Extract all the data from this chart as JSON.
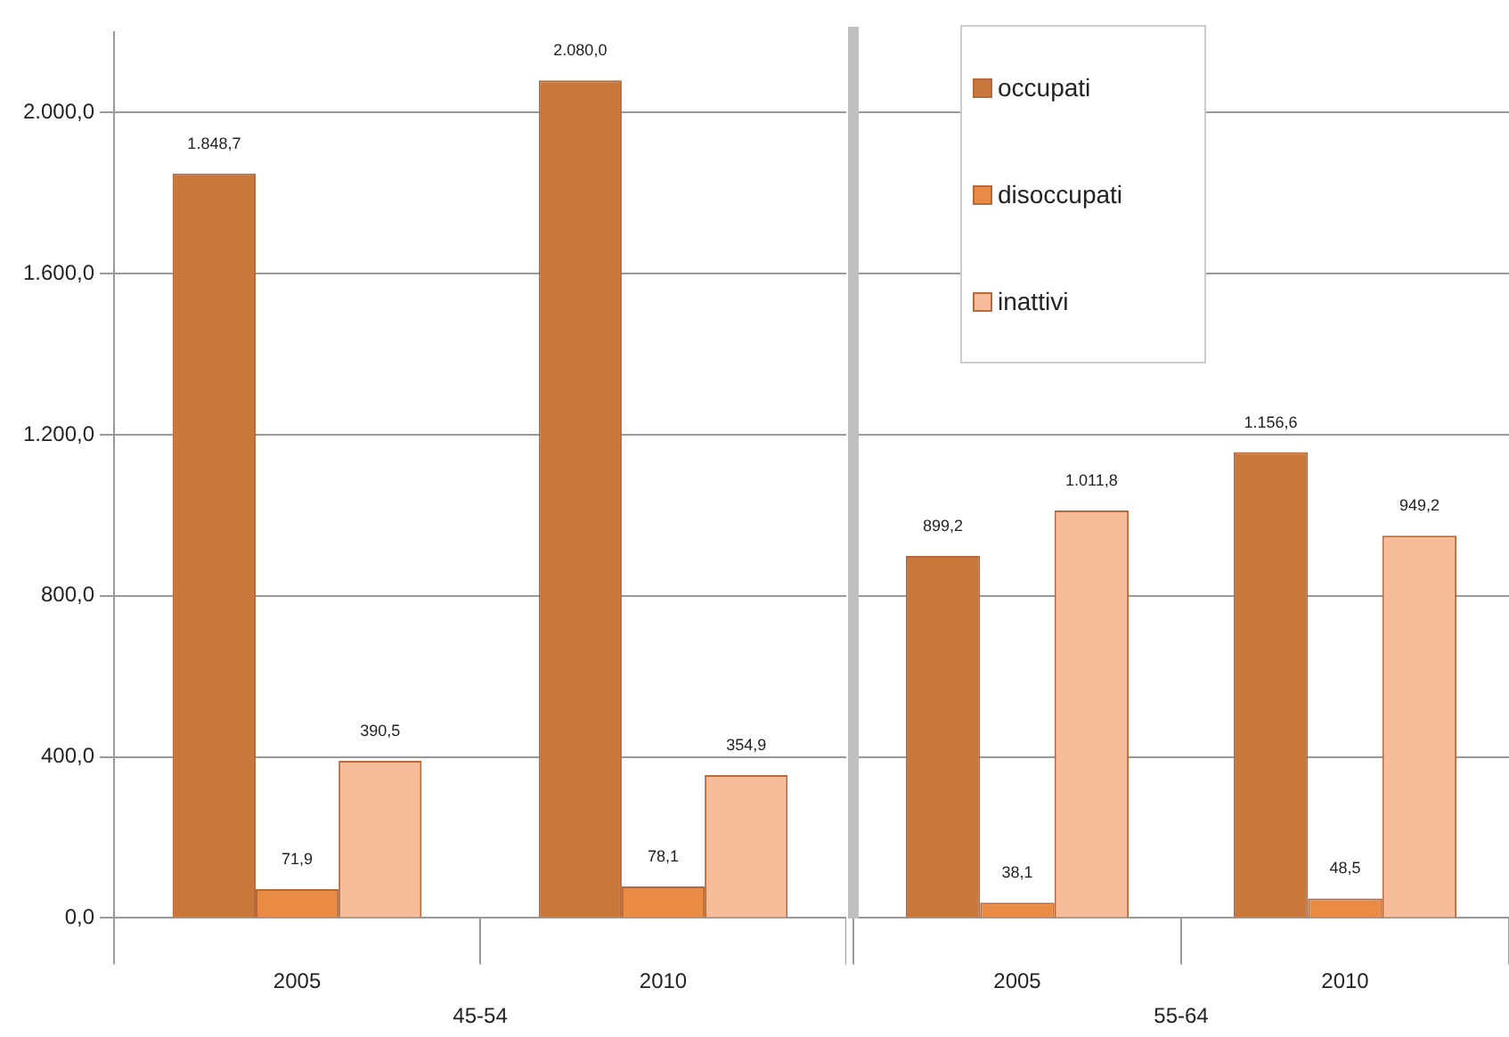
{
  "chart_data": [
    {
      "type": "bar",
      "categories": [
        "2005",
        "2010"
      ],
      "xlabel": "45-54",
      "series": [
        {
          "color": "#c9773a",
          "values": [
            1848.7,
            2080.0
          ],
          "value_labels": [
            "1.848,7",
            "2.080,0"
          ]
        },
        {
          "color": "#e98a45",
          "values": [
            71.9,
            78.1
          ],
          "value_labels": [
            "71,9",
            "78,1"
          ]
        },
        {
          "color": "#f7bc9a",
          "values": [
            390.5,
            354.9
          ],
          "value_labels": [
            "390,5",
            "354,9"
          ]
        }
      ],
      "ylim": [
        0,
        2200
      ],
      "yticks": [
        {
          "value": 0,
          "label": "0,0"
        },
        {
          "value": 400,
          "label": "400,0"
        },
        {
          "value": 800,
          "label": "800,0"
        },
        {
          "value": 1200,
          "label": "1.200,0"
        },
        {
          "value": 1600,
          "label": "1.600,0"
        },
        {
          "value": 2000,
          "label": "2.000,0"
        }
      ],
      "grid": "y"
    },
    {
      "type": "bar",
      "categories": [
        "2005",
        "2010"
      ],
      "xlabel": "55-64",
      "series": [
        {
          "name": "occupati",
          "color": "#c9773a",
          "values": [
            899.2,
            1156.6
          ],
          "value_labels": [
            "899,2",
            "1.156,6"
          ]
        },
        {
          "name": "disoccupati",
          "color": "#e98a45",
          "values": [
            38.1,
            48.5
          ],
          "value_labels": [
            "38,1",
            "48,5"
          ]
        },
        {
          "name": "inattivi",
          "color": "#f7bc9a",
          "values": [
            1011.8,
            949.2
          ],
          "value_labels": [
            "1.011,8",
            "949,2"
          ]
        }
      ],
      "ylim": [
        0,
        2200
      ],
      "yticks": [
        0,
        400,
        800,
        1200,
        1600,
        2000
      ],
      "grid": "y",
      "legend": "top left",
      "tick_labels": "x"
    }
  ]
}
